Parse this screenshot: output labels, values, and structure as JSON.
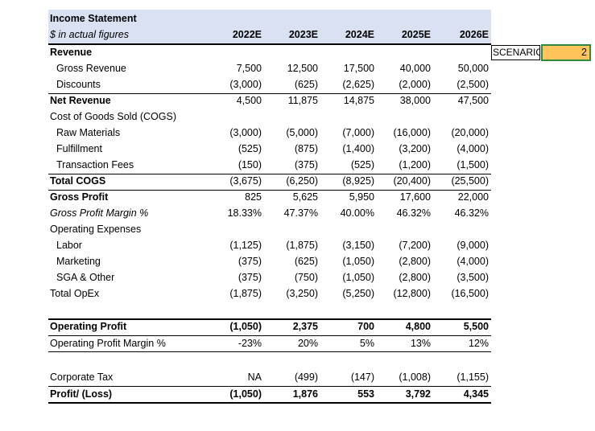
{
  "title": "Income Statement",
  "subtitle": "$ in actual figures",
  "years": [
    "2022E",
    "2023E",
    "2024E",
    "2025E",
    "2026E"
  ],
  "scenario": {
    "label": "SCENARIO",
    "value": "2"
  },
  "rows": [
    {
      "label": "Revenue",
      "values": [
        "",
        "",
        "",
        "",
        ""
      ]
    },
    {
      "label": "Gross Revenue",
      "values": [
        "7,500",
        "12,500",
        "17,500",
        "40,000",
        "50,000"
      ]
    },
    {
      "label": "Discounts",
      "values": [
        "(3,000)",
        "(625)",
        "(2,625)",
        "(2,000)",
        "(2,500)"
      ]
    },
    {
      "label": "Net Revenue",
      "values": [
        "4,500",
        "11,875",
        "14,875",
        "38,000",
        "47,500"
      ]
    },
    {
      "label": "Cost of Goods Sold (COGS)",
      "values": [
        "",
        "",
        "",
        "",
        ""
      ]
    },
    {
      "label": "Raw Materials",
      "values": [
        "(3,000)",
        "(5,000)",
        "(7,000)",
        "(16,000)",
        "(20,000)"
      ]
    },
    {
      "label": "Fulfillment",
      "values": [
        "(525)",
        "(875)",
        "(1,400)",
        "(3,200)",
        "(4,000)"
      ]
    },
    {
      "label": "Transaction Fees",
      "values": [
        "(150)",
        "(375)",
        "(525)",
        "(1,200)",
        "(1,500)"
      ]
    },
    {
      "label": "Total COGS",
      "values": [
        "(3,675)",
        "(6,250)",
        "(8,925)",
        "(20,400)",
        "(25,500)"
      ]
    },
    {
      "label": "Gross Profit",
      "values": [
        "825",
        "5,625",
        "5,950",
        "17,600",
        "22,000"
      ]
    },
    {
      "label": "Gross Profit Margin %",
      "values": [
        "18.33%",
        "47.37%",
        "40.00%",
        "46.32%",
        "46.32%"
      ]
    },
    {
      "label": "Operating Expenses",
      "values": [
        "",
        "",
        "",
        "",
        ""
      ]
    },
    {
      "label": "Labor",
      "values": [
        "(1,125)",
        "(1,875)",
        "(3,150)",
        "(7,200)",
        "(9,000)"
      ]
    },
    {
      "label": "Marketing",
      "values": [
        "(375)",
        "(625)",
        "(1,050)",
        "(2,800)",
        "(4,000)"
      ]
    },
    {
      "label": "SGA & Other",
      "values": [
        "(375)",
        "(750)",
        "(1,050)",
        "(2,800)",
        "(3,500)"
      ]
    },
    {
      "label": "Total OpEx",
      "values": [
        "(1,875)",
        "(3,250)",
        "(5,250)",
        "(12,800)",
        "(16,500)"
      ]
    },
    {
      "label": "Operating Profit",
      "values": [
        "(1,050)",
        "2,375",
        "700",
        "4,800",
        "5,500"
      ]
    },
    {
      "label": "Operating Profit Margin %",
      "values": [
        "-23%",
        "20%",
        "5%",
        "13%",
        "12%"
      ]
    },
    {
      "label": "Corporate Tax",
      "values": [
        "NA",
        "(499)",
        "(147)",
        "(1,008)",
        "(1,155)"
      ]
    },
    {
      "label": "Profit/ (Loss)",
      "values": [
        "(1,050)",
        "1,876",
        "553",
        "3,792",
        "4,345"
      ]
    }
  ]
}
